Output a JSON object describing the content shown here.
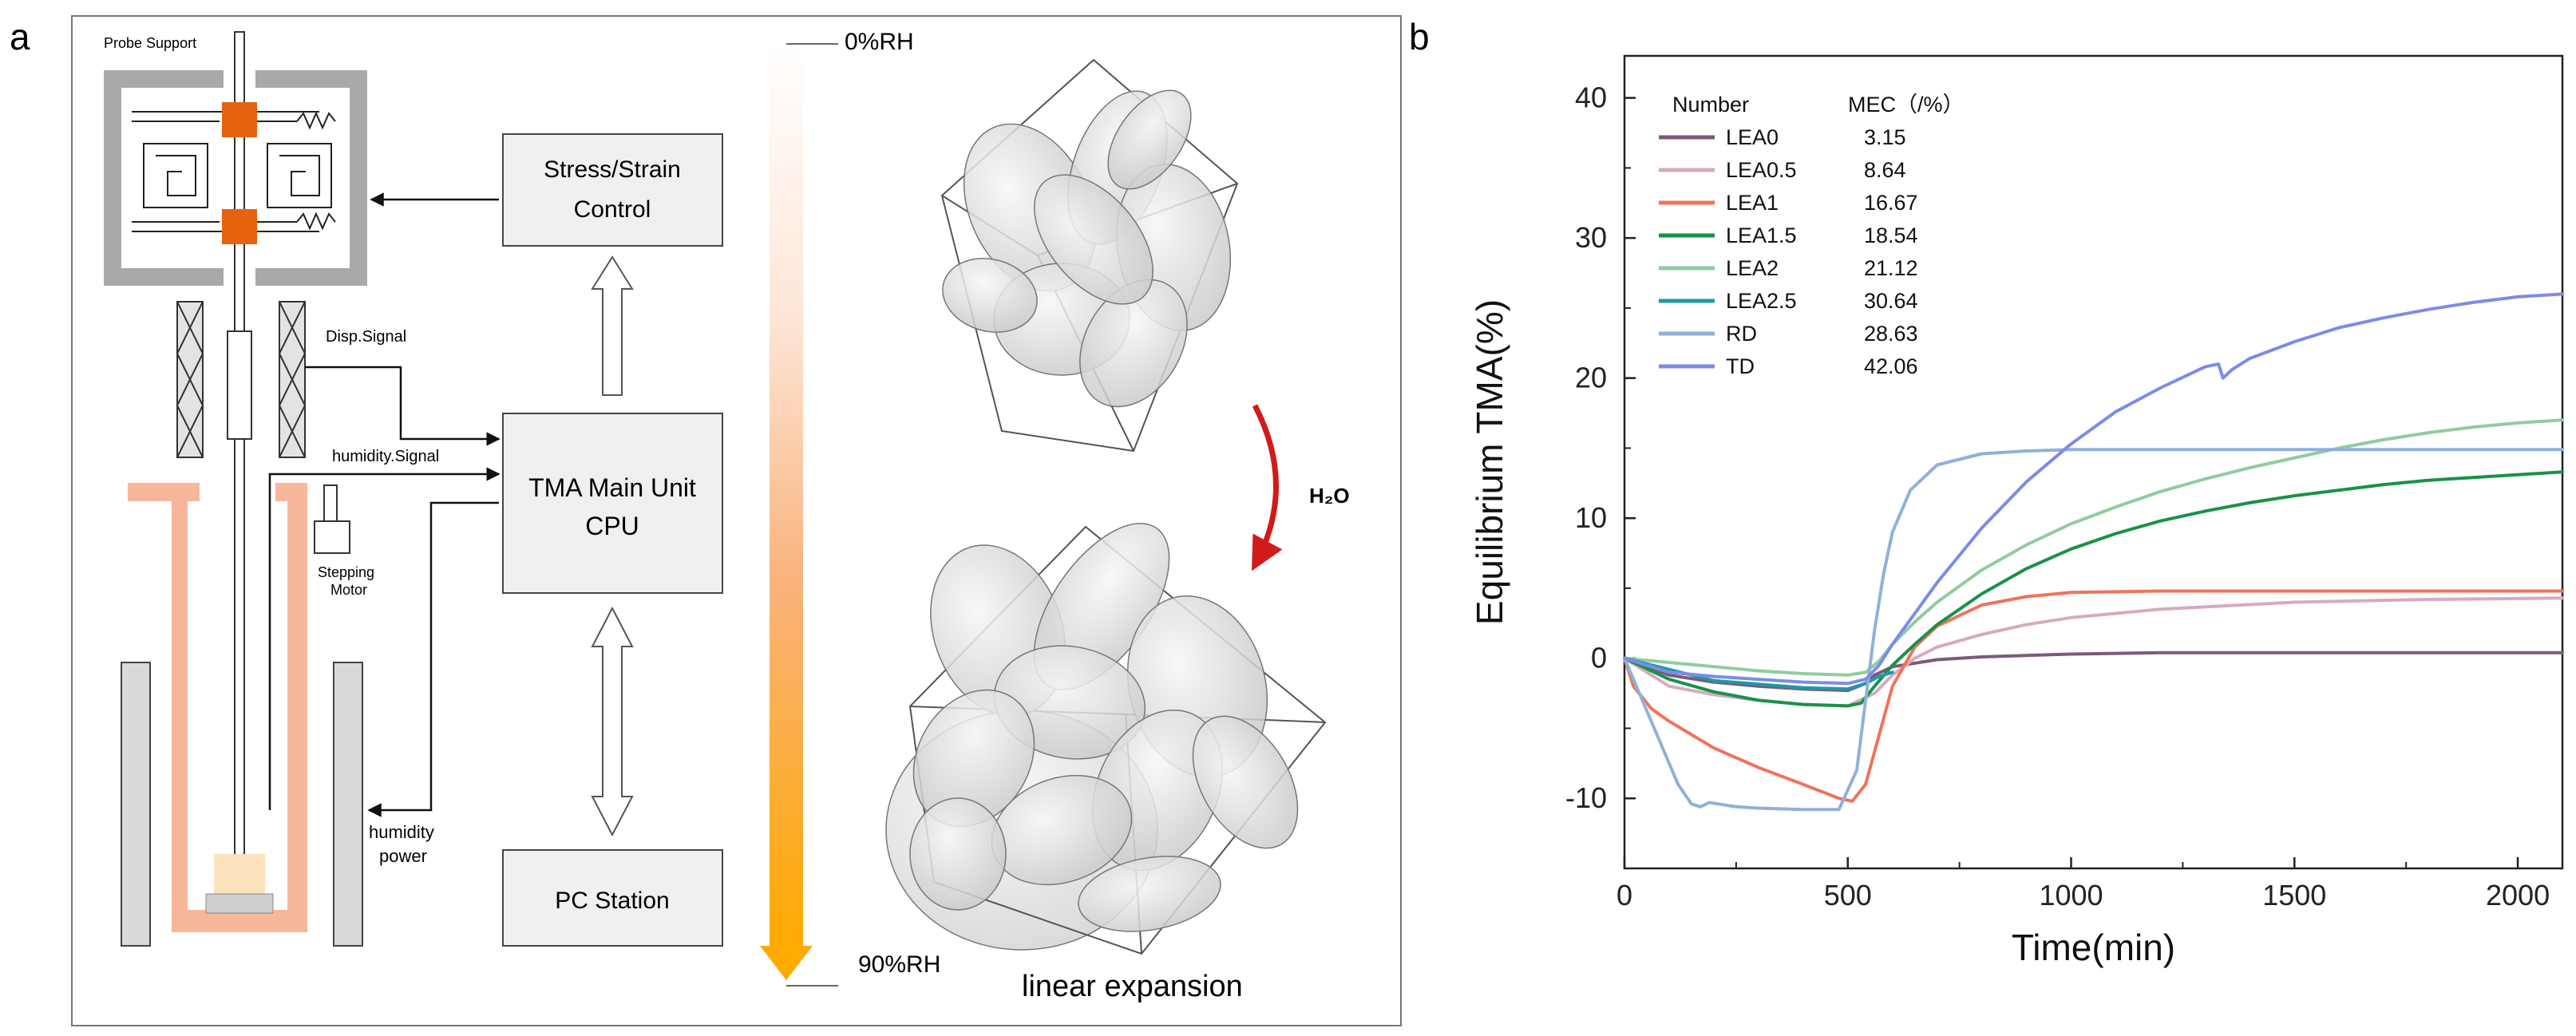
{
  "panel_a": {
    "label": "a",
    "labels": {
      "probe_support": "Probe Support",
      "stress_strain_line1": "Stress/Strain",
      "stress_strain_line2": "Control",
      "disp_signal": "Disp.Signal",
      "humidity_signal": "humidity.Signal",
      "tma_line1": "TMA Main Unit",
      "tma_line2": "CPU",
      "stepping_line1": "Stepping",
      "stepping_line2": "Motor",
      "humidity_power_line1": "humidity",
      "humidity_power_line2": "power",
      "pc_station": "PC Station",
      "rh_top": "0%RH",
      "rh_bottom": "90%RH",
      "h2o": "H₂O",
      "linear_expansion": "linear expansion"
    },
    "colors": {
      "heater": "#f6b79a",
      "probe_clamp": "#e5630f",
      "box_fill": "#f0f0f0",
      "gradient_top": "#ffffff",
      "gradient_bottom": "#ffaa00",
      "h2o_arrow": "#d11a1a"
    }
  },
  "panel_b": {
    "label": "b",
    "legend_header_number": "Number",
    "legend_header_mec": "MEC（/%）"
  },
  "chart_data": {
    "type": "line",
    "xlabel": "Time(min)",
    "ylabel": "Equilibrium TMA(%)",
    "xlim": [
      0,
      2100
    ],
    "ylim": [
      -15,
      43
    ],
    "xticks": [
      "0",
      "500",
      "1000",
      "1500",
      "2000"
    ],
    "yticks": [
      "-10",
      "0",
      "10",
      "20",
      "30",
      "40"
    ],
    "legend_position": "top-left",
    "series": [
      {
        "name": "LEA0",
        "mec": "3.15",
        "color": "#7d5a79",
        "x": [
          0,
          100,
          200,
          300,
          400,
          500,
          540,
          560,
          600,
          700,
          800,
          900,
          1000,
          1200,
          1500,
          1800,
          2100
        ],
        "y": [
          0,
          -1.2,
          -1.7,
          -2.0,
          -2.2,
          -2.3,
          -1.8,
          -1.2,
          -0.6,
          -0.1,
          0.1,
          0.2,
          0.3,
          0.4,
          0.4,
          0.4,
          0.4
        ]
      },
      {
        "name": "LEA0.5",
        "mec": "8.64",
        "color": "#d8a9c2",
        "x": [
          0,
          100,
          200,
          300,
          400,
          500,
          560,
          600,
          650,
          700,
          800,
          900,
          1000,
          1200,
          1500,
          1800,
          2100
        ],
        "y": [
          0,
          -2.0,
          -2.6,
          -3.0,
          -3.3,
          -3.4,
          -2.5,
          -1.2,
          0.0,
          0.8,
          1.7,
          2.4,
          2.9,
          3.5,
          4.0,
          4.2,
          4.3
        ]
      },
      {
        "name": "LEA1",
        "mec": "16.67",
        "color": "#f0735a",
        "x": [
          0,
          20,
          60,
          100,
          200,
          300,
          400,
          480,
          510,
          540,
          570,
          600,
          650,
          700,
          800,
          900,
          1000,
          1200,
          1500,
          1800,
          2100
        ],
        "y": [
          0,
          -2.0,
          -3.6,
          -4.5,
          -6.4,
          -7.8,
          -9.0,
          -10.0,
          -10.2,
          -9.0,
          -5.5,
          -2.0,
          0.8,
          2.3,
          3.8,
          4.4,
          4.7,
          4.8,
          4.8,
          4.8,
          4.8
        ]
      },
      {
        "name": "LEA1.5",
        "mec": "18.54",
        "color": "#199248",
        "x": [
          0,
          100,
          200,
          300,
          400,
          500,
          530,
          560,
          600,
          650,
          700,
          800,
          900,
          1000,
          1100,
          1200,
          1300,
          1400,
          1500,
          1600,
          1700,
          1800,
          1900,
          2000,
          2100
        ],
        "y": [
          0,
          -1.5,
          -2.4,
          -3.0,
          -3.3,
          -3.4,
          -3.2,
          -2.0,
          -0.5,
          1.0,
          2.4,
          4.6,
          6.4,
          7.8,
          8.9,
          9.8,
          10.5,
          11.1,
          11.6,
          12.0,
          12.4,
          12.7,
          12.9,
          13.1,
          13.3
        ]
      },
      {
        "name": "LEA2",
        "mec": "21.12",
        "color": "#90cc9e",
        "x": [
          0,
          100,
          200,
          300,
          400,
          500,
          540,
          570,
          600,
          650,
          700,
          800,
          900,
          1000,
          1100,
          1200,
          1300,
          1400,
          1500,
          1600,
          1700,
          1800,
          1900,
          2000,
          2100
        ],
        "y": [
          0,
          -0.3,
          -0.6,
          -0.9,
          -1.1,
          -1.2,
          -1.0,
          -0.2,
          1.0,
          2.6,
          4.0,
          6.3,
          8.1,
          9.6,
          10.8,
          11.9,
          12.8,
          13.6,
          14.3,
          15.0,
          15.6,
          16.1,
          16.5,
          16.8,
          17.0
        ]
      },
      {
        "name": "LEA2.5",
        "mec": "30.64",
        "color": "#1d9aa3",
        "x": [
          0,
          200,
          400,
          500,
          540,
          570,
          600
        ],
        "y": [
          0,
          -1.6,
          -2.1,
          -2.2,
          -1.8,
          -1.3,
          -1.0
        ]
      },
      {
        "name": "RD",
        "mec": "28.63",
        "color": "#8fb1d9",
        "x": [
          0,
          40,
          80,
          120,
          150,
          170,
          190,
          210,
          250,
          300,
          400,
          480,
          520,
          540,
          560,
          580,
          600,
          640,
          700,
          800,
          900,
          1000,
          1200,
          1500,
          1800,
          2100
        ],
        "y": [
          0,
          -3.0,
          -6.0,
          -9.0,
          -10.4,
          -10.6,
          -10.3,
          -10.4,
          -10.6,
          -10.7,
          -10.8,
          -10.8,
          -8.0,
          -3.0,
          2.0,
          6.0,
          9.0,
          12.0,
          13.8,
          14.6,
          14.8,
          14.9,
          14.9,
          14.9,
          14.9,
          14.9
        ]
      },
      {
        "name": "TD",
        "mec": "42.06",
        "color": "#7b8ce8",
        "x": [
          0,
          100,
          200,
          300,
          400,
          500,
          540,
          570,
          600,
          650,
          700,
          800,
          900,
          1000,
          1100,
          1200,
          1300,
          1330,
          1340,
          1360,
          1400,
          1500,
          1600,
          1700,
          1800,
          1900,
          2000,
          2100
        ],
        "y": [
          0,
          -1.0,
          -1.3,
          -1.5,
          -1.7,
          -1.8,
          -1.5,
          -0.5,
          1.0,
          3.2,
          5.4,
          9.3,
          12.6,
          15.3,
          17.6,
          19.3,
          20.8,
          21.0,
          20.0,
          20.6,
          21.4,
          22.6,
          23.6,
          24.3,
          24.9,
          25.4,
          25.8,
          26.0
        ]
      }
    ]
  }
}
